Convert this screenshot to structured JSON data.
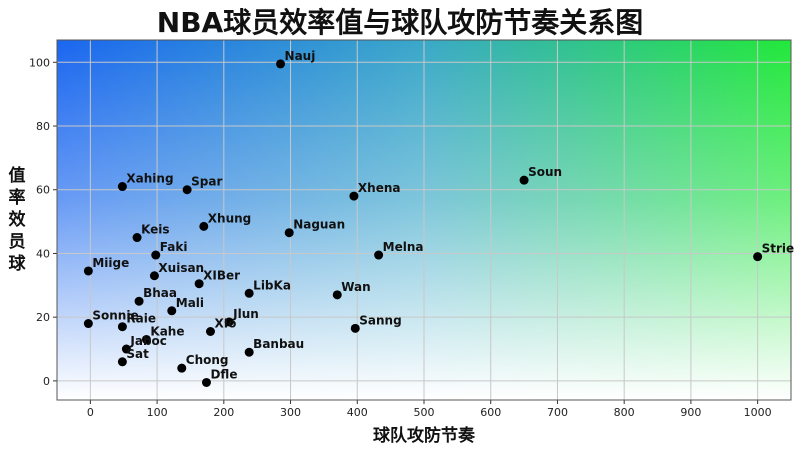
{
  "chart_data": {
    "type": "scatter",
    "title": "NBA球员效率值与球队攻防节奏关系图",
    "xlabel": "球队攻防节奏",
    "ylabel": "值率效员球",
    "xlim": [
      -50,
      1050
    ],
    "ylim": [
      -6,
      107
    ],
    "xticks": [
      0,
      100,
      200,
      300,
      400,
      500,
      600,
      700,
      800,
      900,
      1000
    ],
    "yticks": [
      0,
      20,
      40,
      60,
      80,
      100
    ],
    "grid": true,
    "background": "gradient: blue top-left, green top-right, white bottom",
    "point_color": "#000000",
    "points": [
      {
        "label": "Nauj",
        "x": 285,
        "y": 99.5
      },
      {
        "label": "Soun",
        "x": 650,
        "y": 63
      },
      {
        "label": "Xahing",
        "x": 48,
        "y": 61
      },
      {
        "label": "Spar",
        "x": 145,
        "y": 60
      },
      {
        "label": "Xhena",
        "x": 395,
        "y": 58
      },
      {
        "label": "Xhung",
        "x": 170,
        "y": 48.5
      },
      {
        "label": "Naguan",
        "x": 298,
        "y": 46.5
      },
      {
        "label": "Keis",
        "x": 70,
        "y": 45
      },
      {
        "label": "Faki",
        "x": 98,
        "y": 39.5
      },
      {
        "label": "Melna",
        "x": 432,
        "y": 39.5
      },
      {
        "label": "Strie",
        "x": 1000,
        "y": 39
      },
      {
        "label": "Miige",
        "x": -3,
        "y": 34.5
      },
      {
        "label": "Xuisan",
        "x": 96,
        "y": 33
      },
      {
        "label": "XIBer",
        "x": 163,
        "y": 30.5
      },
      {
        "label": "LibKa",
        "x": 238,
        "y": 27.5
      },
      {
        "label": "Wan",
        "x": 370,
        "y": 27
      },
      {
        "label": "Bhaa",
        "x": 73,
        "y": 25
      },
      {
        "label": "Mali",
        "x": 122,
        "y": 22
      },
      {
        "label": "Sonnie",
        "x": -3,
        "y": 18
      },
      {
        "label": "Jlun",
        "x": 208,
        "y": 18.5
      },
      {
        "label": "Raie",
        "x": 48,
        "y": 17
      },
      {
        "label": "XIo",
        "x": 180,
        "y": 15.5
      },
      {
        "label": "Sanng",
        "x": 397,
        "y": 16.5
      },
      {
        "label": "Kahe",
        "x": 84,
        "y": 13
      },
      {
        "label": "Jaboc",
        "x": 54,
        "y": 10
      },
      {
        "label": "Banbau",
        "x": 238,
        "y": 9
      },
      {
        "label": "Sat",
        "x": 48,
        "y": 6
      },
      {
        "label": "Chong",
        "x": 137,
        "y": 4
      },
      {
        "label": "Dfle",
        "x": 174,
        "y": -0.5
      }
    ]
  }
}
